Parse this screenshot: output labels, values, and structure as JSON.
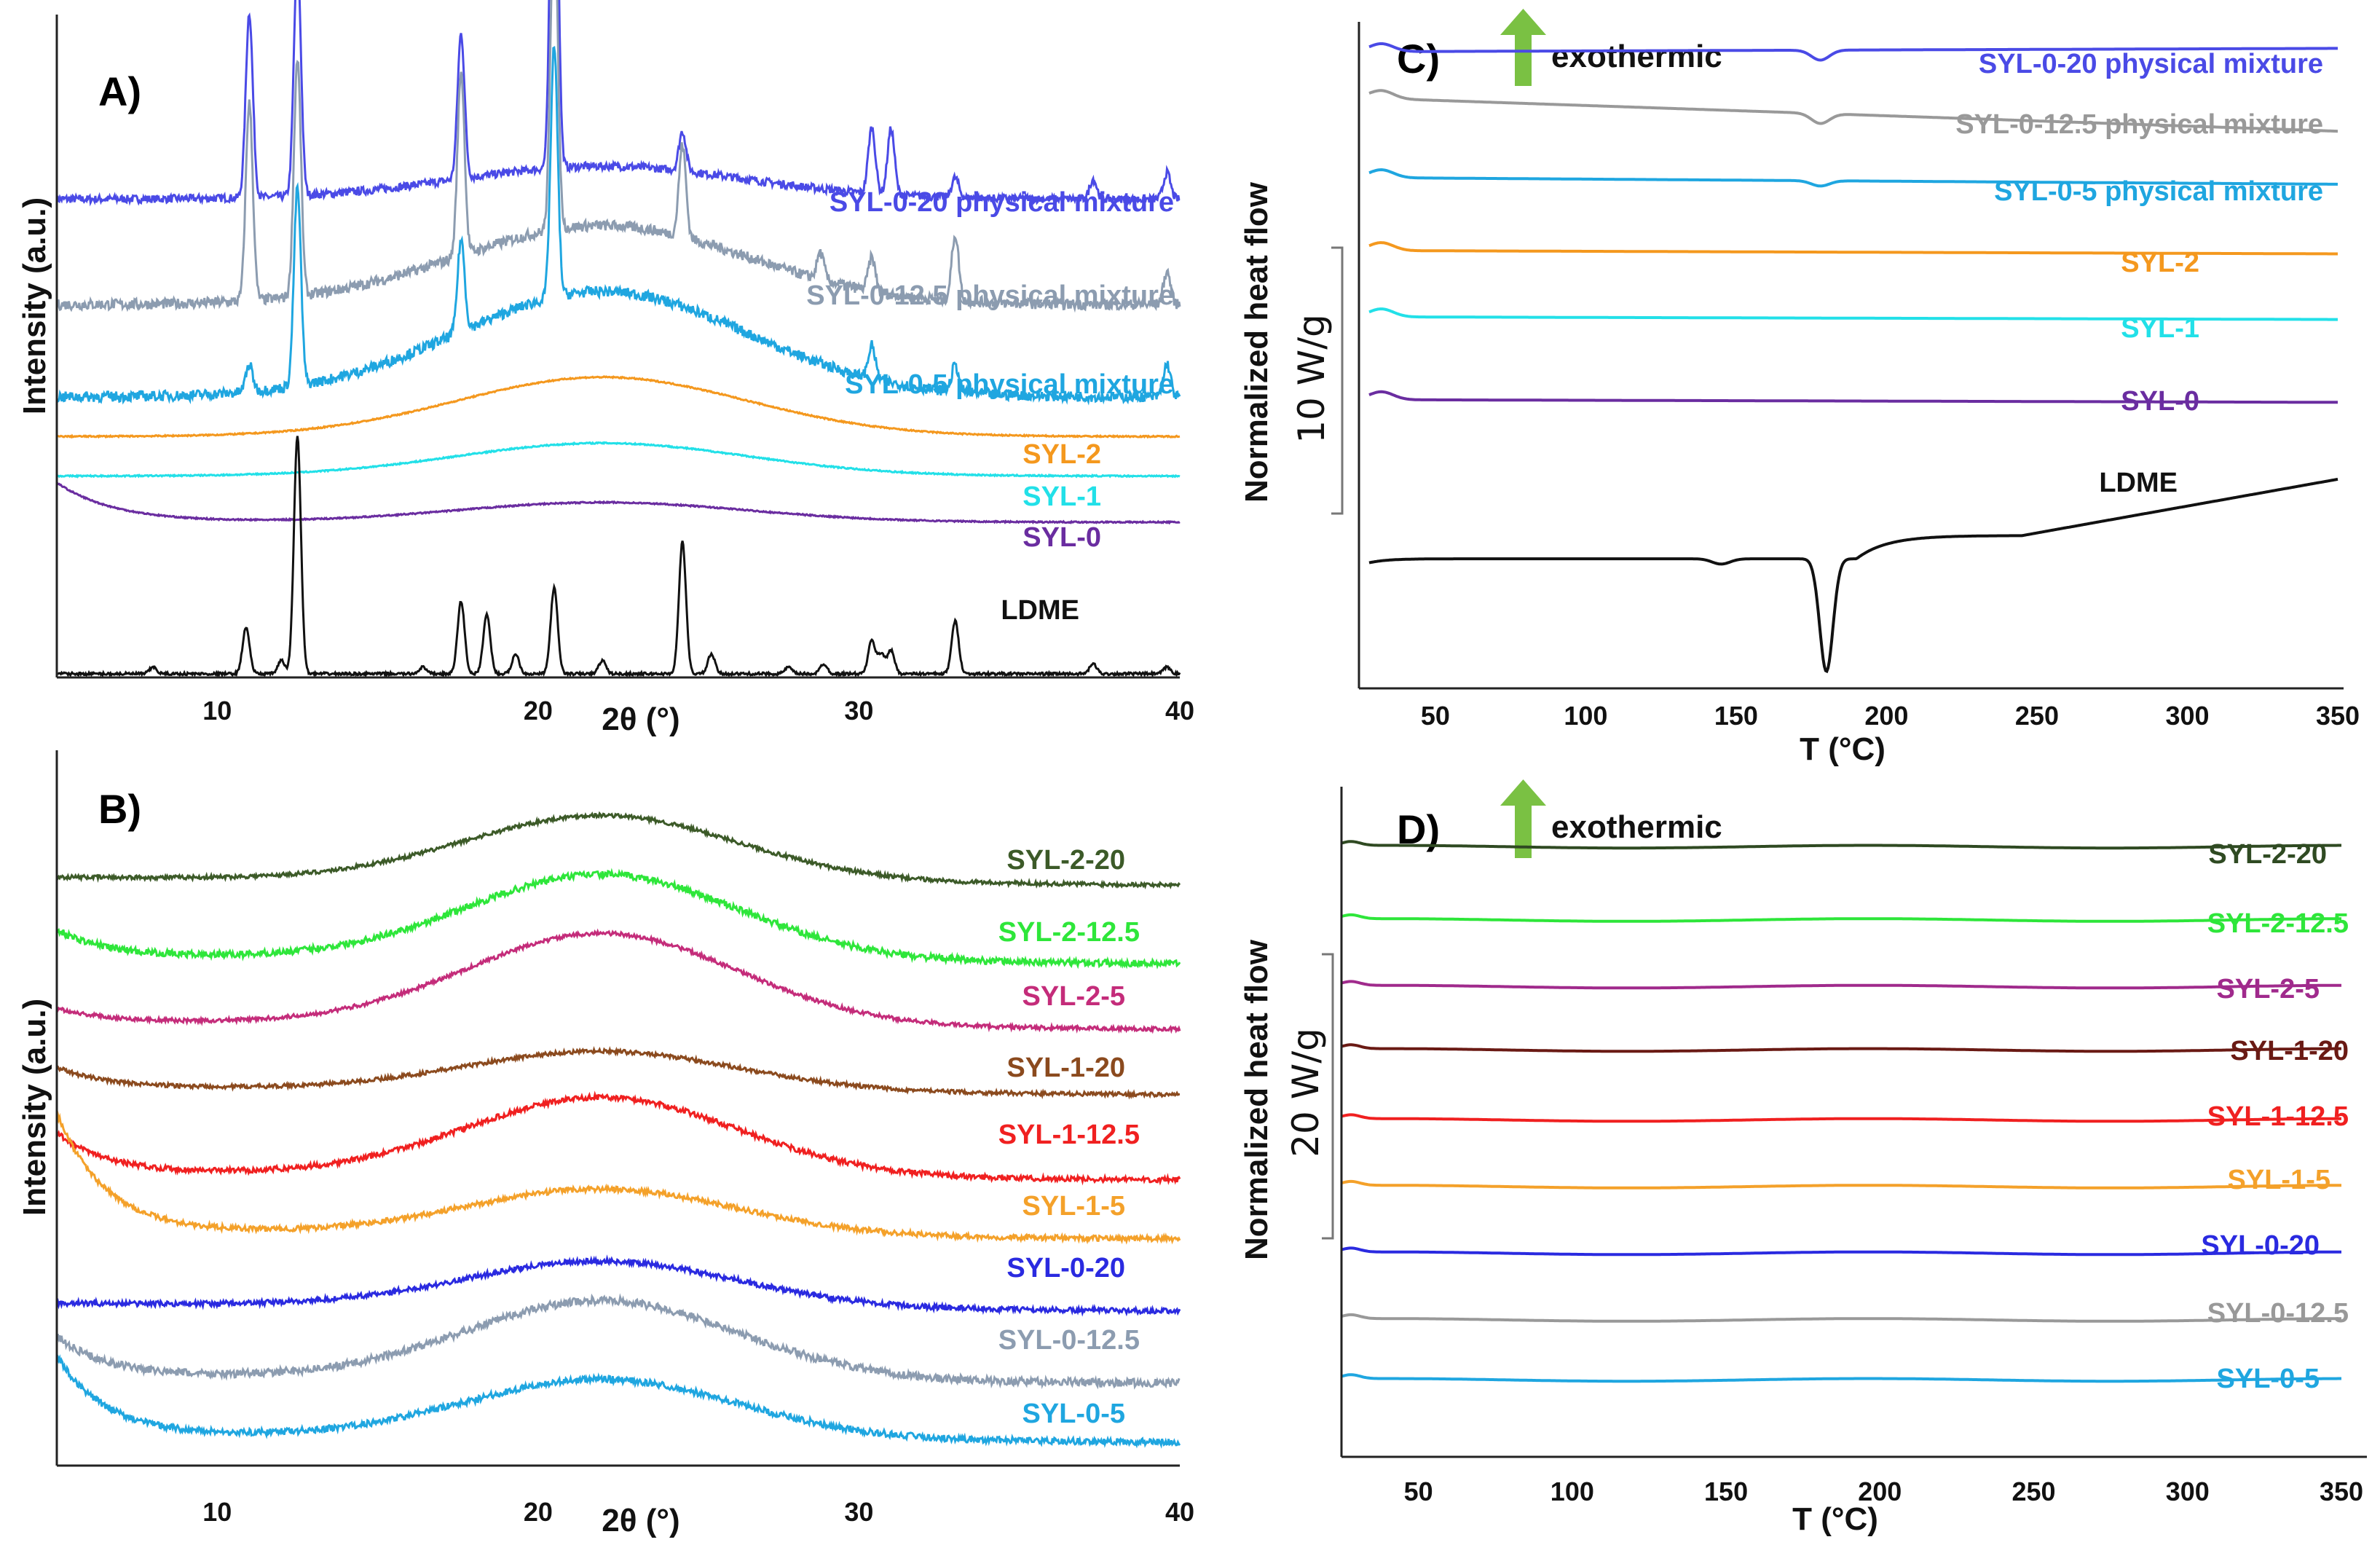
{
  "figure": {
    "panels": [
      {
        "id": "A",
        "label": "A)",
        "type": "line",
        "xlabel": "2θ (°)",
        "ylabel": "Intensity (a.u.)",
        "xlim": [
          5,
          40
        ],
        "xticks": [
          "10",
          "20",
          "30",
          "40"
        ],
        "xtick_values": [
          10,
          20,
          30,
          40
        ],
        "series": [
          {
            "name": "SYL-0-20 physical mixture",
            "color": "#4a4ae6",
            "kind": "xrd",
            "baseline": 0.72,
            "hump": 0.05,
            "peaks": [
              [
                11.0,
                0.28
              ],
              [
                12.5,
                0.36
              ],
              [
                17.6,
                0.22
              ],
              [
                20.5,
                0.72
              ],
              [
                24.5,
                0.06
              ],
              [
                30.4,
                0.1
              ],
              [
                31.0,
                0.1
              ],
              [
                33.0,
                0.03
              ],
              [
                37.3,
                0.03
              ],
              [
                39.6,
                0.04
              ]
            ],
            "noise": 0.006
          },
          {
            "name": "SYL-0-12.5 physical mixture",
            "color": "#8c9cb0",
            "kind": "xrd",
            "baseline": 0.56,
            "hump": 0.12,
            "peaks": [
              [
                11.0,
                0.3
              ],
              [
                12.5,
                0.36
              ],
              [
                17.6,
                0.28
              ],
              [
                20.5,
                0.5
              ],
              [
                24.5,
                0.14
              ],
              [
                28.8,
                0.04
              ],
              [
                30.4,
                0.05
              ],
              [
                33.0,
                0.1
              ],
              [
                39.6,
                0.05
              ]
            ],
            "noise": 0.008
          },
          {
            "name": "SYL-0-5 physical mixture",
            "color": "#1fa6e0",
            "kind": "xrd",
            "baseline": 0.42,
            "hump": 0.16,
            "peaks": [
              [
                11.0,
                0.04
              ],
              [
                12.5,
                0.3
              ],
              [
                17.6,
                0.14
              ],
              [
                20.5,
                0.38
              ],
              [
                30.4,
                0.05
              ],
              [
                33.0,
                0.04
              ],
              [
                39.6,
                0.05
              ]
            ],
            "noise": 0.008
          },
          {
            "name": "SYL-2",
            "color": "#f4981e",
            "kind": "xrd",
            "baseline": 0.36,
            "hump": 0.09,
            "peaks": [],
            "noise": 0.001
          },
          {
            "name": "SYL-1",
            "color": "#22e0e8",
            "kind": "xrd",
            "baseline": 0.3,
            "hump": 0.05,
            "peaks": [],
            "noise": 0.001
          },
          {
            "name": "SYL-0",
            "color": "#6a2da0",
            "kind": "xrd",
            "baseline": 0.23,
            "hump": 0.03,
            "peaks": [],
            "rise": 0.06,
            "noise": 0.001
          },
          {
            "name": "LDME",
            "color": "#111111",
            "kind": "xrd",
            "baseline": 0.0,
            "hump": 0.0,
            "peaks": [
              [
                8.0,
                0.01
              ],
              [
                10.9,
                0.07
              ],
              [
                12.0,
                0.02
              ],
              [
                12.5,
                0.36
              ],
              [
                16.4,
                0.01
              ],
              [
                17.6,
                0.11
              ],
              [
                18.4,
                0.09
              ],
              [
                19.3,
                0.03
              ],
              [
                20.5,
                0.13
              ],
              [
                22.0,
                0.02
              ],
              [
                24.5,
                0.2
              ],
              [
                25.4,
                0.03
              ],
              [
                27.8,
                0.01
              ],
              [
                28.9,
                0.015
              ],
              [
                30.4,
                0.05
              ],
              [
                30.7,
                0.03
              ],
              [
                31.0,
                0.035
              ],
              [
                33.0,
                0.08
              ],
              [
                37.3,
                0.015
              ],
              [
                39.6,
                0.01
              ]
            ],
            "noise": 0.002
          }
        ]
      },
      {
        "id": "B",
        "label": "B)",
        "type": "line",
        "xlabel": "2θ (°)",
        "ylabel": "Intensity (a.u.)",
        "xlim": [
          5,
          40
        ],
        "xticks": [
          "10",
          "20",
          "30",
          "40"
        ],
        "xtick_values": [
          10,
          20,
          30,
          40
        ],
        "series": [
          {
            "name": "SYL-2-20",
            "color": "#3c5a28",
            "kind": "hump",
            "baseline": 0.89,
            "hump": 0.1,
            "rise": 0.0,
            "noise": 0.003
          },
          {
            "name": "SYL-2-12.5",
            "color": "#2ee63a",
            "kind": "hump",
            "baseline": 0.77,
            "hump": 0.13,
            "rise": 0.04,
            "noise": 0.005
          },
          {
            "name": "SYL-2-5",
            "color": "#c42c7a",
            "kind": "hump",
            "baseline": 0.67,
            "hump": 0.14,
            "rise": 0.02,
            "noise": 0.003
          },
          {
            "name": "SYL-1-20",
            "color": "#8b4a1e",
            "kind": "hump",
            "baseline": 0.57,
            "hump": 0.06,
            "rise": 0.03,
            "noise": 0.003
          },
          {
            "name": "SYL-1-12.5",
            "color": "#f02020",
            "kind": "hump",
            "baseline": 0.44,
            "hump": 0.12,
            "rise": 0.06,
            "noise": 0.004
          },
          {
            "name": "SYL-1-5",
            "color": "#f4a12a",
            "kind": "hump",
            "baseline": 0.35,
            "hump": 0.07,
            "rise": 0.18,
            "noise": 0.004
          },
          {
            "name": "SYL-0-20",
            "color": "#2a2ae0",
            "kind": "hump",
            "baseline": 0.24,
            "hump": 0.07,
            "rise": 0.0,
            "noise": 0.004
          },
          {
            "name": "SYL-0-12.5",
            "color": "#8c9cb0",
            "kind": "hump",
            "baseline": 0.13,
            "hump": 0.12,
            "rise": 0.06,
            "noise": 0.006
          },
          {
            "name": "SYL-0-5",
            "color": "#1fa6e0",
            "kind": "hump",
            "baseline": 0.04,
            "hump": 0.09,
            "rise": 0.12,
            "noise": 0.005
          }
        ]
      },
      {
        "id": "C",
        "label": "C)",
        "type": "line",
        "xlabel": "T (°C)",
        "ylabel": "Normalized heat flow",
        "scale_label": "10 W/g",
        "exothermic_label": "exothermic",
        "xlim": [
          25,
          350
        ],
        "xticks": [
          "50",
          "100",
          "150",
          "200",
          "250",
          "300",
          "350"
        ],
        "xtick_values": [
          50,
          100,
          150,
          200,
          250,
          300,
          350
        ],
        "series": [
          {
            "name": "SYL-0-20 physical mixture",
            "color": "#4a4ae6",
            "kind": "dsc",
            "level": 0.955,
            "slope": 0.005,
            "dip": 0.015
          },
          {
            "name": "SYL-0-12.5 physical mixture",
            "color": "#999999",
            "kind": "dsc",
            "level": 0.885,
            "slope": -0.05,
            "dip": 0.015
          },
          {
            "name": "SYL-0-5 physical mixture",
            "color": "#1fa6e0",
            "kind": "dsc",
            "level": 0.765,
            "slope": -0.01,
            "dip": 0.008
          },
          {
            "name": "SYL-2",
            "color": "#f4981e",
            "kind": "dsc",
            "level": 0.655,
            "slope": -0.005,
            "dip": 0
          },
          {
            "name": "SYL-1",
            "color": "#22e0e8",
            "kind": "dsc",
            "level": 0.555,
            "slope": -0.004,
            "dip": 0
          },
          {
            "name": "SYL-0",
            "color": "#6a2da0",
            "kind": "dsc",
            "level": 0.43,
            "slope": -0.004,
            "dip": 0
          },
          {
            "name": "LDME",
            "color": "#111111",
            "kind": "ldme",
            "level": 0.19,
            "slope": 0,
            "dip": 0
          }
        ]
      },
      {
        "id": "D",
        "label": "D)",
        "type": "line",
        "xlabel": "T (°C)",
        "ylabel": "Normalized heat flow",
        "scale_label": "20 W/g",
        "exothermic_label": "exothermic",
        "xlim": [
          25,
          350
        ],
        "xticks": [
          "50",
          "100",
          "150",
          "200",
          "250",
          "300",
          "350"
        ],
        "xtick_values": [
          50,
          100,
          150,
          200,
          250,
          300,
          350
        ],
        "series": [
          {
            "name": "SYL-2-20",
            "color": "#2f4a22",
            "level": 0.91
          },
          {
            "name": "SYL-2-12.5",
            "color": "#2ee63a",
            "level": 0.8
          },
          {
            "name": "SYL-2-5",
            "color": "#a02a8c",
            "level": 0.7
          },
          {
            "name": "SYL-1-20",
            "color": "#6a1a14",
            "level": 0.605
          },
          {
            "name": "SYL-1-12.5",
            "color": "#f02020",
            "level": 0.5
          },
          {
            "name": "SYL-1-5",
            "color": "#f4a12a",
            "level": 0.4
          },
          {
            "name": "SYL-0-20",
            "color": "#2a2ae0",
            "level": 0.3
          },
          {
            "name": "SYL-0-12.5",
            "color": "#999999",
            "level": 0.2
          },
          {
            "name": "SYL-0-5",
            "color": "#1fa6e0",
            "level": 0.11
          }
        ]
      }
    ]
  },
  "chart_data": [
    {
      "panel": "A",
      "type": "line",
      "title": "",
      "xlabel": "2θ (°)",
      "ylabel": "Intensity (a.u.)",
      "xlim": [
        5,
        40
      ],
      "xticks": [
        10,
        20,
        30,
        40
      ],
      "series": [
        {
          "name": "SYL-0-20 physical mixture",
          "peaks_2theta": [
            11.0,
            12.5,
            17.6,
            20.5,
            24.5,
            30.4,
            31.0
          ]
        },
        {
          "name": "SYL-0-12.5 physical mixture",
          "peaks_2theta": [
            11.0,
            12.5,
            17.6,
            20.5,
            24.5,
            33.0
          ]
        },
        {
          "name": "SYL-0-5 physical mixture",
          "peaks_2theta": [
            12.5,
            17.6,
            20.5,
            30.4,
            33.0,
            39.6
          ]
        },
        {
          "name": "SYL-2",
          "peaks_2theta": []
        },
        {
          "name": "SYL-1",
          "peaks_2theta": []
        },
        {
          "name": "SYL-0",
          "peaks_2theta": []
        },
        {
          "name": "LDME",
          "peaks_2theta": [
            10.9,
            12.5,
            17.6,
            18.4,
            20.5,
            24.5,
            30.4,
            33.0
          ]
        }
      ]
    },
    {
      "panel": "B",
      "type": "line",
      "title": "",
      "xlabel": "2θ (°)",
      "ylabel": "Intensity (a.u.)",
      "xlim": [
        5,
        40
      ],
      "xticks": [
        10,
        20,
        30,
        40
      ],
      "series": [
        {
          "name": "SYL-2-20",
          "amorphous_halo_center": 22
        },
        {
          "name": "SYL-2-12.5",
          "amorphous_halo_center": 22
        },
        {
          "name": "SYL-2-5",
          "amorphous_halo_center": 22
        },
        {
          "name": "SYL-1-20",
          "amorphous_halo_center": 22
        },
        {
          "name": "SYL-1-12.5",
          "amorphous_halo_center": 22
        },
        {
          "name": "SYL-1-5",
          "amorphous_halo_center": 22
        },
        {
          "name": "SYL-0-20",
          "amorphous_halo_center": 22
        },
        {
          "name": "SYL-0-12.5",
          "amorphous_halo_center": 22
        },
        {
          "name": "SYL-0-5",
          "amorphous_halo_center": 22
        }
      ]
    },
    {
      "panel": "C",
      "type": "line",
      "title": "",
      "xlabel": "T (°C)",
      "ylabel": "Normalized heat flow",
      "xlim": [
        25,
        350
      ],
      "xticks": [
        50,
        100,
        150,
        200,
        250,
        300,
        350
      ],
      "scale_bar": "10 W/g",
      "series": [
        {
          "name": "SYL-0-20 physical mixture",
          "endotherm_T": 178
        },
        {
          "name": "SYL-0-12.5 physical mixture",
          "endotherm_T": 178
        },
        {
          "name": "SYL-0-5 physical mixture",
          "endotherm_T": 178
        },
        {
          "name": "SYL-2"
        },
        {
          "name": "SYL-1"
        },
        {
          "name": "SYL-0"
        },
        {
          "name": "LDME",
          "endotherm_T": 180,
          "minor_event_T": 145
        }
      ]
    },
    {
      "panel": "D",
      "type": "line",
      "title": "",
      "xlabel": "T (°C)",
      "ylabel": "Normalized heat flow",
      "xlim": [
        25,
        350
      ],
      "xticks": [
        50,
        100,
        150,
        200,
        250,
        300,
        350
      ],
      "scale_bar": "20 W/g",
      "series": [
        {
          "name": "SYL-2-20"
        },
        {
          "name": "SYL-2-12.5"
        },
        {
          "name": "SYL-2-5"
        },
        {
          "name": "SYL-1-20"
        },
        {
          "name": "SYL-1-12.5"
        },
        {
          "name": "SYL-1-5"
        },
        {
          "name": "SYL-0-20"
        },
        {
          "name": "SYL-0-12.5"
        },
        {
          "name": "SYL-0-5"
        }
      ]
    }
  ]
}
